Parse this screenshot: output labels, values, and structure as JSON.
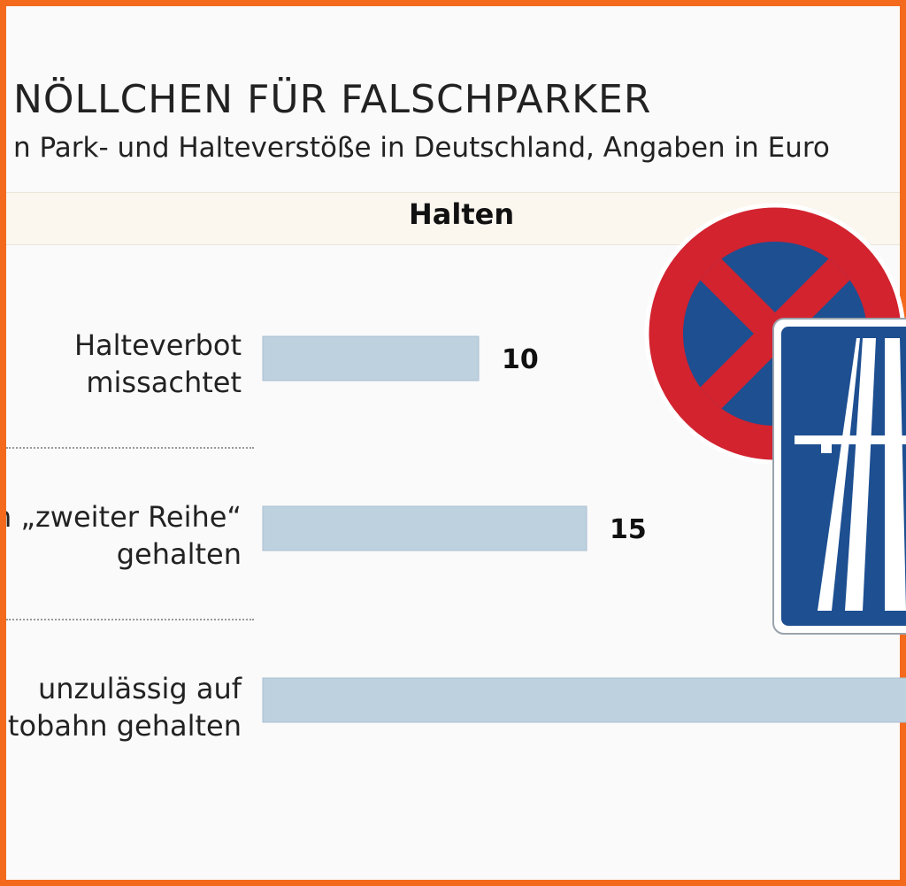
{
  "chart_data": {
    "type": "bar",
    "orientation": "horizontal",
    "title": "NÖLLCHEN FÜR FALSCHPARKER",
    "subtitle": "n Park- und Halteverstöße in Deutschland, Angaben in Euro",
    "section": "Halten",
    "categories": [
      "Halteverbot\nmissachtet",
      "in „zweiter Reihe“\ngehalten",
      "unzulässig auf\nutobahn gehalten"
    ],
    "values": [
      10,
      15,
      30
    ],
    "value_labels": [
      "10",
      "15",
      ""
    ],
    "unit": "Euro",
    "bar_color": "#bdd1df",
    "grid": false,
    "legend": "none"
  },
  "icons": {
    "no_stopping_sign": "no-stopping-sign-icon",
    "autobahn_sign": "autobahn-sign-icon",
    "red": "#d2232f",
    "blue": "#1d4f91"
  }
}
